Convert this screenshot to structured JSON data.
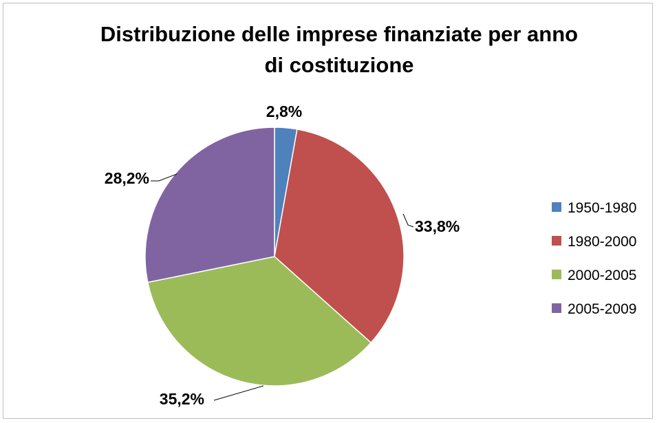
{
  "chart_data": {
    "type": "pie",
    "title": "Distribuzione delle imprese finanziate per anno di costituzione",
    "title_lines": [
      "Distribuzione delle imprese finanziate per anno",
      "di costituzione"
    ],
    "categories": [
      "1950-1980",
      "1980-2000",
      "2000-2005",
      "2005-2009"
    ],
    "values": [
      2.8,
      33.8,
      35.2,
      28.2
    ],
    "labels": [
      "2,8%",
      "33,8%",
      "35,2%",
      "28,2%"
    ],
    "colors": [
      "#4f81bd",
      "#c0504d",
      "#9bbb59",
      "#8064a2"
    ],
    "legend_position": "right",
    "unit": "%"
  }
}
